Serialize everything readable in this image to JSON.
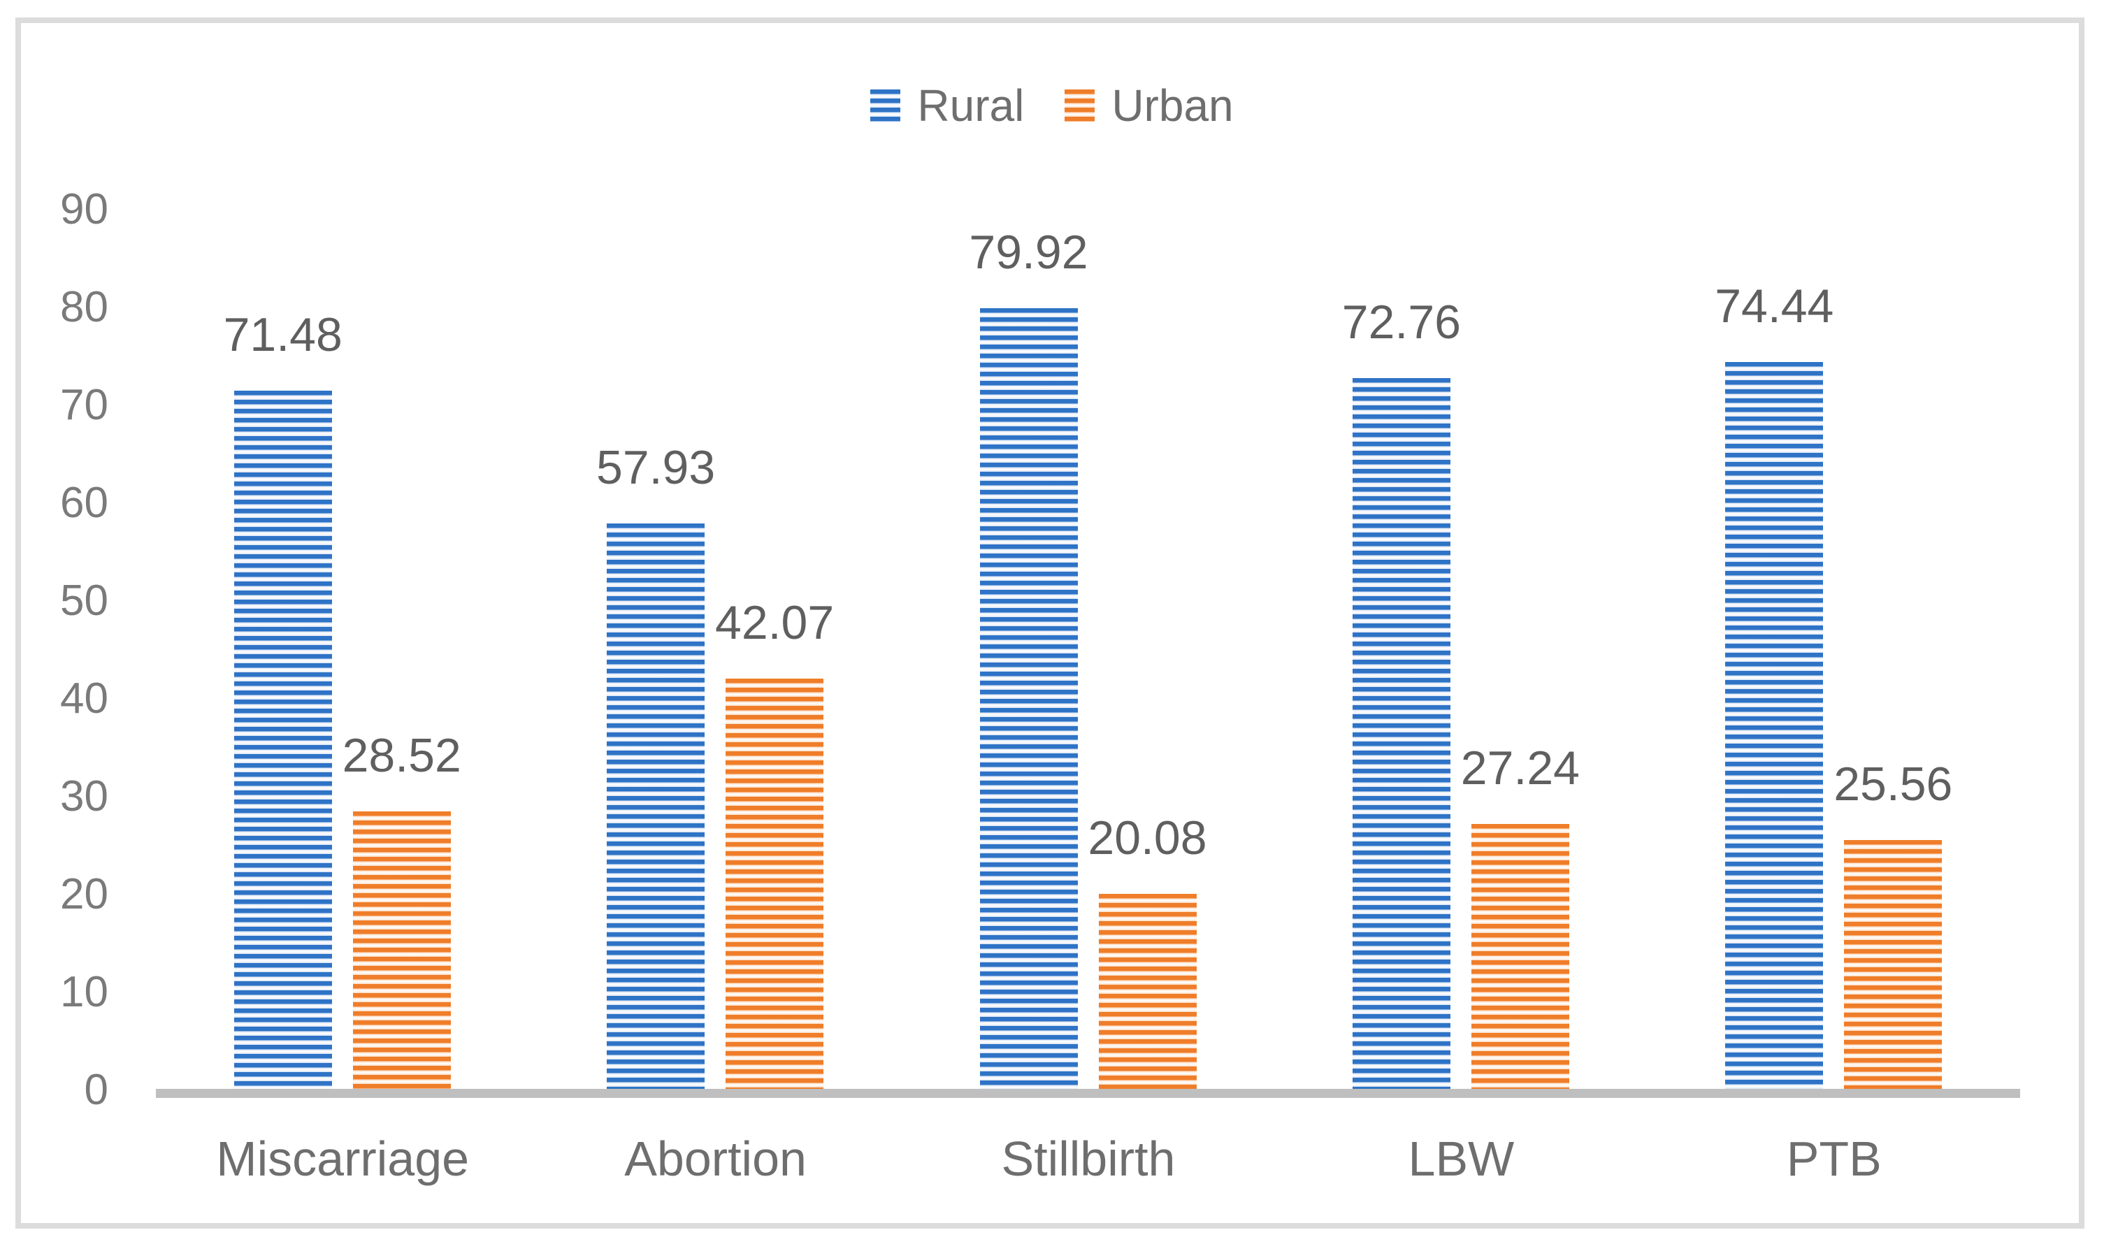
{
  "legend": {
    "items": [
      {
        "label": "Rural"
      },
      {
        "label": "Urban"
      }
    ]
  },
  "chart_data": {
    "type": "bar",
    "title": "",
    "xlabel": "",
    "ylabel": "",
    "categories": [
      "Miscarriage",
      "Abortion",
      "Stillbirth",
      "LBW",
      "PTB"
    ],
    "series": [
      {
        "name": "Rural",
        "color": "#2e73c6",
        "tint": "#d9e4f4",
        "pattern": "horizontal-stripes",
        "values": [
          71.48,
          57.93,
          79.92,
          72.76,
          74.44
        ],
        "labels": [
          "71.48",
          "57.93",
          "79.92",
          "72.76",
          "74.44"
        ]
      },
      {
        "name": "Urban",
        "color": "#ef7d29",
        "tint": "#fcdcc2",
        "pattern": "horizontal-stripes",
        "values": [
          28.52,
          42.07,
          20.08,
          27.24,
          25.56
        ],
        "labels": [
          "28.52",
          "42.07",
          "20.08",
          "27.24",
          "25.56"
        ]
      }
    ],
    "ylim": [
      0,
      90
    ],
    "yticks": [
      "0",
      "10",
      "20",
      "30",
      "40",
      "50",
      "60",
      "70",
      "80",
      "90"
    ],
    "grid": false,
    "legend_position": "top-center",
    "data_labels_position": "outside-end",
    "colors": {
      "background": "#ffffff",
      "frame_border": "#dcdcdc",
      "axis_line": "#bfbfbf",
      "tick_text": "#7a7a7a",
      "category_text": "#6e6e6e",
      "value_label_text": "#5f5f5f",
      "legend_text": "#6e6e6e"
    }
  }
}
